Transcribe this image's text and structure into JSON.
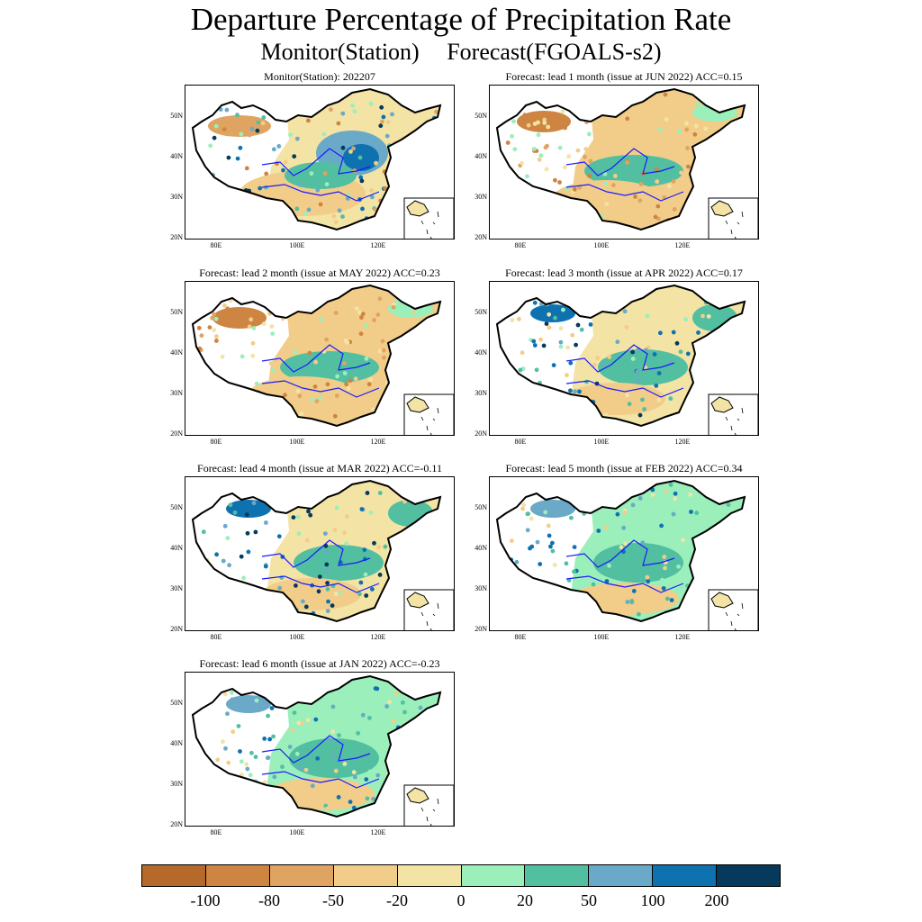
{
  "title": "Departure Percentage of Precipitation Rate",
  "subtitle": {
    "left": "Monitor(Station)",
    "right": "Forecast(FGOALS-s2)"
  },
  "lat_labels": [
    "50N",
    "40N",
    "30N",
    "20N"
  ],
  "lon_labels": [
    "80E",
    "100E",
    "120E"
  ],
  "panels": [
    {
      "title": "Monitor(Station): 202207",
      "style": "monitor"
    },
    {
      "title": "Forecast: lead 1 month (issue at JUN 2022) ACC=0.15",
      "style": "dry"
    },
    {
      "title": "Forecast: lead 2 month (issue at MAY 2022) ACC=0.23",
      "style": "dry"
    },
    {
      "title": "Forecast: lead 3 month (issue at APR 2022) ACC=0.17",
      "style": "mixed"
    },
    {
      "title": "Forecast: lead 4 month (issue at MAR 2022) ACC=-0.11",
      "style": "mixed"
    },
    {
      "title": "Forecast: lead 5 month (issue at FEB 2022) ACC=0.34",
      "style": "wet"
    },
    {
      "title": "Forecast: lead 6 month (issue at JAN 2022) ACC=-0.23",
      "style": "wet"
    }
  ],
  "colorbar": {
    "colors": [
      "#b5692a",
      "#cd8541",
      "#e0a462",
      "#f2cd89",
      "#f3e3a4",
      "#9aefbb",
      "#52bfa1",
      "#6aa9c7",
      "#0f72b0",
      "#053a5c"
    ],
    "labels": [
      "-100",
      "-80",
      "-50",
      "-20",
      "0",
      "20",
      "50",
      "100",
      "200"
    ]
  }
}
